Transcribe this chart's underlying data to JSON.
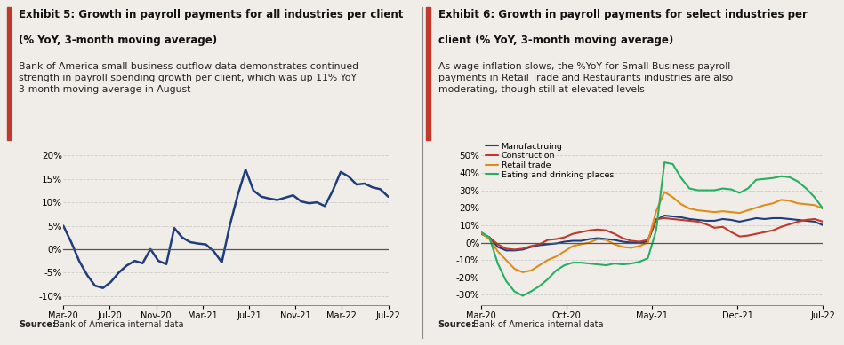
{
  "chart1": {
    "title_line1": "Exhibit 5: Growth in payroll payments for all industries per client",
    "title_line2": "(% YoY, 3-month moving average)",
    "subtitle": "Bank of America small business outflow data demonstrates continued\nstrength in payroll spending growth per client, which was up 11% YoY\n3-month moving average in August",
    "source_bold": "Source:",
    "source_rest": " Bank of America internal data",
    "line_color": "#1f3d7a",
    "yticks": [
      -10,
      -5,
      0,
      5,
      10,
      15,
      20
    ],
    "ylim": [
      -12,
      23
    ],
    "xtick_labels": [
      "Mar-20",
      "Jul-20",
      "Nov-20",
      "Mar-21",
      "Jul-21",
      "Nov-21",
      "Mar-22",
      "Jul-22"
    ],
    "data_y": [
      5.0,
      1.5,
      -2.5,
      -5.5,
      -7.8,
      -8.3,
      -7.0,
      -5.0,
      -3.5,
      -2.5,
      -3.0,
      0.0,
      -2.5,
      -3.2,
      4.5,
      2.5,
      1.5,
      1.2,
      1.0,
      -0.5,
      -2.8,
      5.0,
      11.5,
      17.0,
      12.5,
      11.2,
      10.8,
      10.5,
      11.0,
      11.5,
      10.2,
      9.8,
      10.0,
      9.2,
      12.5,
      16.5,
      15.5,
      13.8,
      14.0,
      13.2,
      12.8,
      11.2
    ]
  },
  "chart2": {
    "title_line1": "Exhibit 6: Growth in payroll payments for select industries per",
    "title_line2": "client (% YoY, 3-month moving average)",
    "subtitle": "As wage inflation slows, the %YoY for Small Business payroll\npayments in Retail Trade and Restaurants industries are also\nmoderating, though still at elevated levels",
    "source_bold": "Source:",
    "source_rest": " Bank of America internal data",
    "yticks": [
      -30,
      -20,
      -10,
      0,
      10,
      20,
      30,
      40,
      50
    ],
    "ylim": [
      -36,
      58
    ],
    "xtick_labels": [
      "Mar-20",
      "Oct-20",
      "May-21",
      "Dec-21",
      "Jul-22"
    ],
    "series": [
      {
        "name": "Manufactruing",
        "color": "#1f3d7a",
        "data_y": [
          5.0,
          3.0,
          -2.5,
          -4.5,
          -4.5,
          -4.0,
          -2.5,
          -1.5,
          -1.0,
          -0.5,
          0.5,
          1.0,
          1.0,
          2.0,
          2.5,
          2.0,
          1.5,
          0.5,
          0.0,
          0.0,
          0.5,
          13.0,
          15.5,
          15.0,
          14.5,
          13.5,
          13.0,
          12.5,
          12.5,
          13.5,
          13.0,
          12.0,
          13.0,
          14.0,
          13.5,
          14.0,
          14.0,
          13.5,
          13.0,
          12.5,
          12.0,
          10.0
        ]
      },
      {
        "name": "Construction",
        "color": "#c0392b",
        "data_y": [
          5.5,
          3.0,
          -1.0,
          -3.5,
          -4.0,
          -3.5,
          -2.0,
          -1.0,
          1.5,
          2.0,
          3.0,
          5.0,
          6.0,
          7.0,
          7.5,
          7.0,
          5.0,
          2.5,
          1.0,
          0.5,
          1.5,
          13.5,
          14.0,
          13.5,
          13.0,
          12.5,
          12.0,
          10.5,
          8.5,
          9.0,
          6.0,
          3.5,
          4.0,
          5.0,
          6.0,
          7.0,
          9.0,
          10.5,
          12.0,
          13.0,
          13.5,
          12.0
        ]
      },
      {
        "name": "Retail trade",
        "color": "#e08c1a",
        "data_y": [
          5.5,
          2.0,
          -5.0,
          -10.0,
          -15.0,
          -17.0,
          -16.0,
          -13.0,
          -10.0,
          -8.0,
          -5.0,
          -2.0,
          -1.0,
          0.0,
          2.0,
          1.5,
          -1.0,
          -2.5,
          -3.0,
          -2.0,
          0.0,
          18.0,
          29.0,
          26.0,
          22.0,
          19.5,
          18.5,
          18.0,
          17.5,
          18.0,
          17.5,
          17.0,
          18.5,
          20.0,
          21.5,
          22.5,
          24.5,
          24.0,
          22.5,
          22.0,
          21.5,
          19.5
        ]
      },
      {
        "name": "Eating and drinking places",
        "color": "#27ae60",
        "data_y": [
          6.0,
          3.0,
          -12.0,
          -22.0,
          -28.0,
          -30.5,
          -28.0,
          -25.0,
          -21.0,
          -16.0,
          -13.0,
          -11.5,
          -11.5,
          -12.0,
          -12.5,
          -13.0,
          -12.0,
          -12.5,
          -12.0,
          -11.0,
          -9.0,
          7.0,
          46.0,
          45.0,
          37.0,
          31.0,
          30.0,
          30.0,
          30.0,
          31.0,
          30.5,
          28.5,
          31.0,
          36.0,
          36.5,
          37.0,
          38.0,
          37.5,
          35.0,
          31.0,
          26.0,
          19.5
        ]
      }
    ]
  },
  "accent_color": "#c0392b",
  "bg_color": "#f0ede8",
  "title_fontsize": 8.5,
  "subtitle_fontsize": 7.8,
  "tick_fontsize": 7.5,
  "source_fontsize": 7.0,
  "line_color_zero": "#555555",
  "grid_color": "#cccccc",
  "divider_color": "#888888"
}
